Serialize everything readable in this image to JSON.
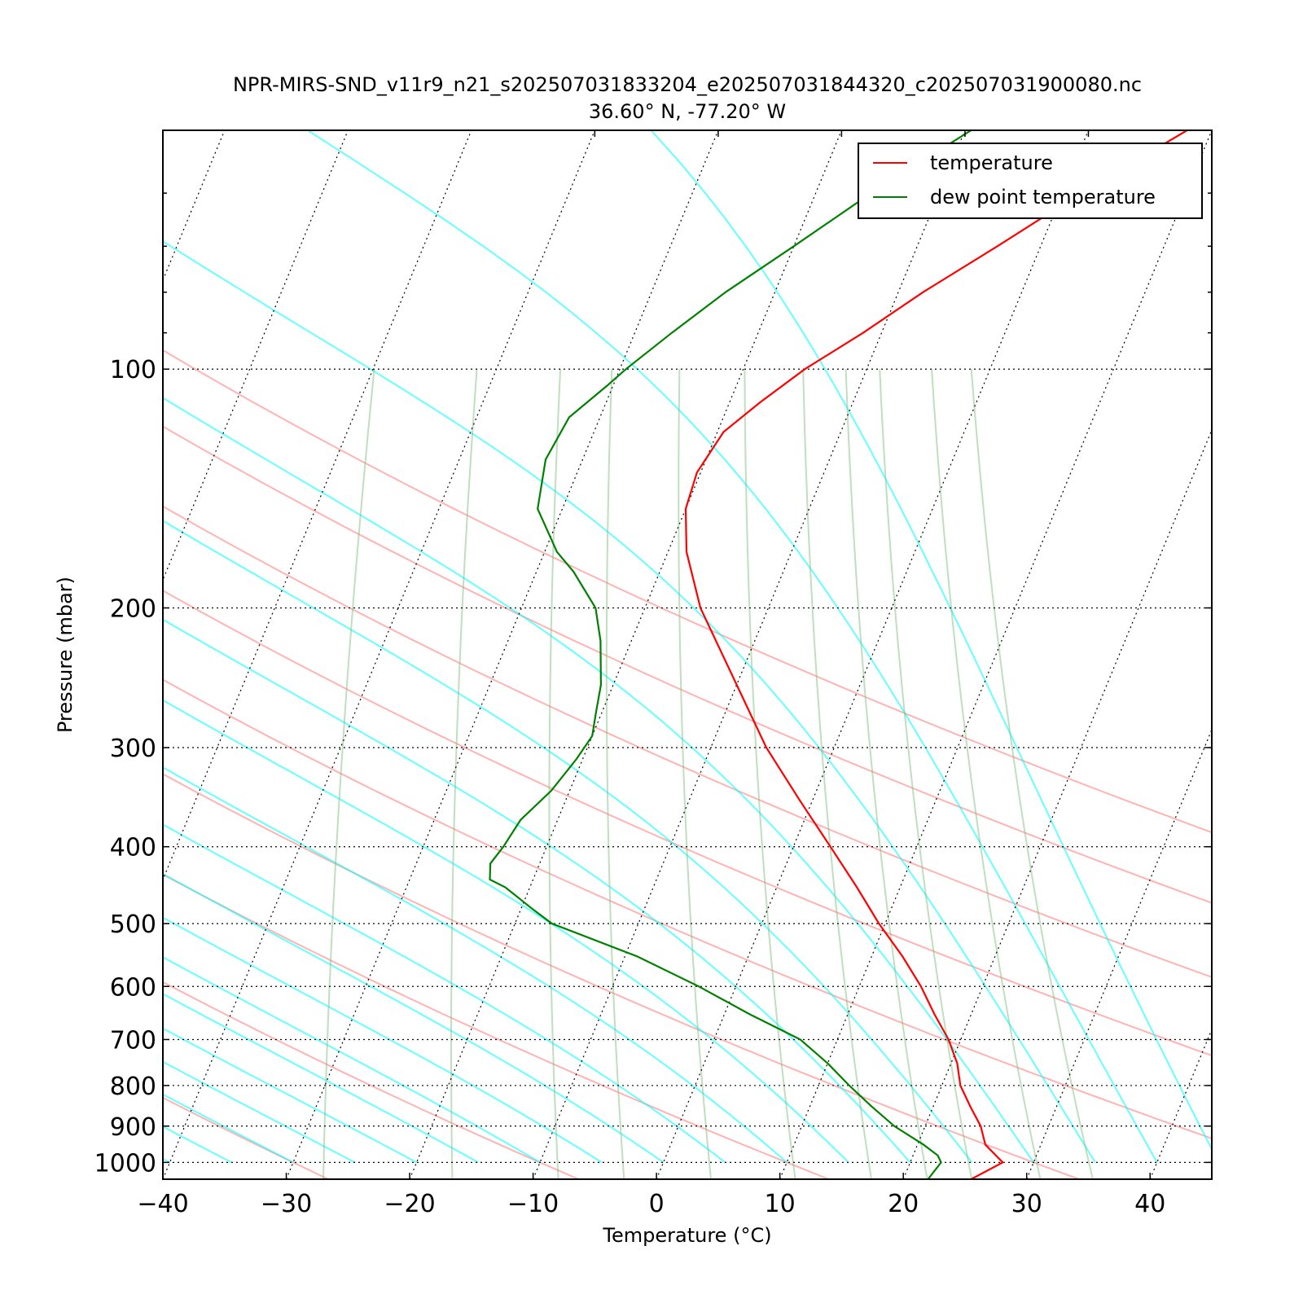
{
  "chart_data": {
    "type": "line",
    "subtype": "skew-t log-p",
    "title": "NPR-MIRS-SND_v11r9_n21_s202507031833204_e202507031844320_c202507031900080.nc",
    "subtitle": "36.60$^\\circ$N, -77.20$^\\circ$W",
    "subtitle_display": "36.60° N, -77.20° W",
    "xlabel": "Temperature ($^\\circ$C)",
    "xlabel_display": "Temperature (°C)",
    "ylabel": "Pressure (mbar)",
    "xlim": [
      -40,
      45
    ],
    "ylim": [
      1050,
      50
    ],
    "y_scale": "log",
    "grid": true,
    "x_ticks": [
      -40,
      -30,
      -20,
      -10,
      0,
      10,
      20,
      30,
      40
    ],
    "x_tick_labels": [
      "−40",
      "−30",
      "−20",
      "−10",
      "0",
      "10",
      "20",
      "30",
      "40"
    ],
    "y_ticks": [
      100,
      200,
      300,
      400,
      500,
      600,
      700,
      800,
      900,
      1000
    ],
    "y_tick_labels": [
      "100",
      "200",
      "300",
      "400",
      "500",
      "600",
      "700",
      "800",
      "900",
      "1000"
    ],
    "legend_position": "top-right",
    "series": [
      {
        "name": "temperature",
        "color": "#ff0000",
        "pressure": [
          1050,
          1000,
          950,
          900,
          850,
          800,
          750,
          700,
          650,
          600,
          550,
          500,
          450,
          400,
          350,
          300,
          250,
          200,
          170,
          150,
          135,
          120,
          110,
          100,
          90,
          80,
          70,
          60,
          50
        ],
        "temperature": [
          25.5,
          27.5,
          25.5,
          24.5,
          23.0,
          21.5,
          20.5,
          19.0,
          17.0,
          15.0,
          12.5,
          9.5,
          6.5,
          3.0,
          -1.0,
          -5.5,
          -10.0,
          -15.5,
          -18.5,
          -20.0,
          -20.3,
          -19.5,
          -17.5,
          -15.0,
          -11.5,
          -8.0,
          -3.5,
          1.5,
          8.0
        ]
      },
      {
        "name": "dew point temperature",
        "color": "#008000",
        "pressure": [
          1050,
          1000,
          980,
          950,
          900,
          850,
          800,
          750,
          700,
          650,
          600,
          550,
          500,
          480,
          450,
          440,
          420,
          400,
          370,
          340,
          310,
          290,
          270,
          250,
          220,
          200,
          180,
          170,
          150,
          130,
          115,
          105,
          100,
          90,
          80,
          70,
          60,
          50
        ],
        "dewpoint": [
          22.0,
          22.5,
          22.0,
          20.5,
          17.5,
          15.0,
          12.5,
          10.0,
          7.0,
          2.0,
          -3.0,
          -9.0,
          -17.0,
          -19.0,
          -22.0,
          -23.5,
          -24.0,
          -23.5,
          -23.0,
          -21.5,
          -20.5,
          -20.0,
          -20.5,
          -21.0,
          -22.5,
          -24.0,
          -27.0,
          -29.0,
          -32.0,
          -33.0,
          -32.5,
          -30.5,
          -29.5,
          -27.0,
          -24.0,
          -20.0,
          -15.5,
          -9.5
        ]
      }
    ],
    "background_lines": {
      "dry_adiabats_color": "#ff9999",
      "moist_adiabats_color": "#00ffff",
      "mixing_ratio_color": "#80c080",
      "isotherms_color": "#000000",
      "isobars_color": "#000000"
    }
  }
}
